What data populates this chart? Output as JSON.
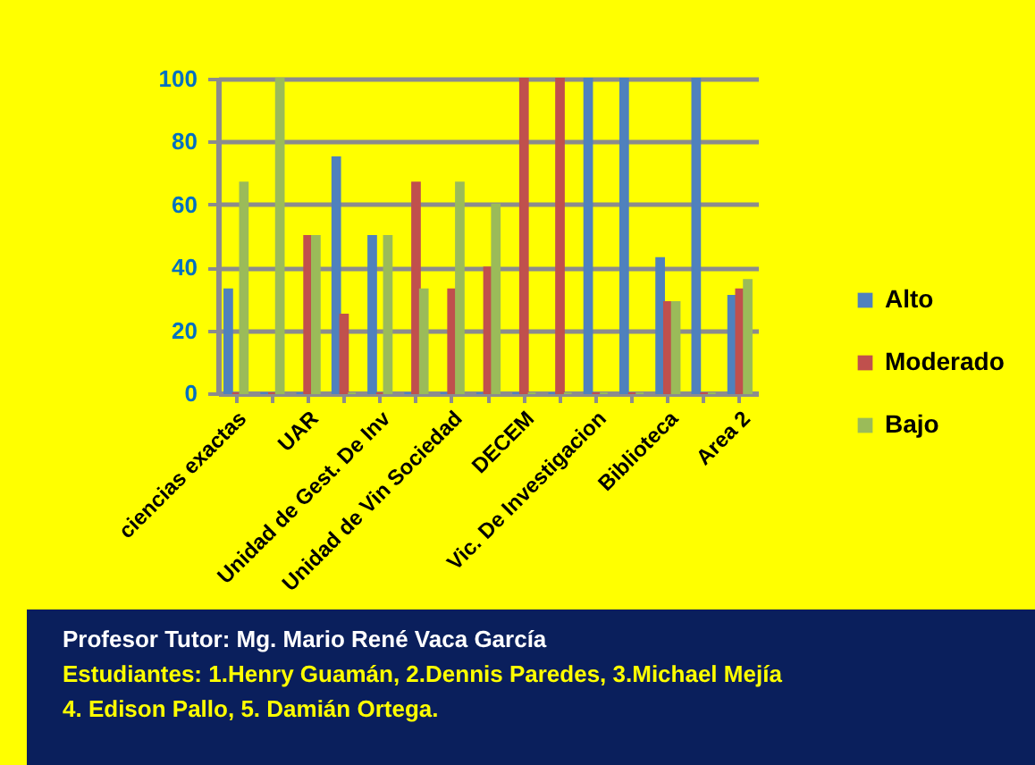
{
  "chart_data": {
    "type": "bar",
    "categories": [
      "ciencias exactas",
      null,
      "UAR",
      null,
      "Unidad de Gest. De Inv",
      null,
      "Unidad de Vin Sociedad",
      null,
      "DECEM",
      null,
      "Vic. De Investigacion",
      null,
      "Biblioteca",
      null,
      "Area 2"
    ],
    "series": [
      {
        "name": "Alto",
        "color": "#4f81bd",
        "values": [
          33,
          0,
          0,
          75,
          50,
          0,
          0,
          0,
          0,
          0,
          100,
          100,
          43,
          100,
          31
        ]
      },
      {
        "name": "Moderado",
        "color": "#c0504d",
        "values": [
          0,
          0,
          50,
          25,
          0,
          67,
          33,
          40,
          100,
          100,
          0,
          0,
          29,
          0,
          33
        ]
      },
      {
        "name": "Bajo",
        "color": "#9bbb59",
        "values": [
          67,
          100,
          50,
          0,
          50,
          33,
          67,
          60,
          0,
          0,
          0,
          0,
          29,
          0,
          36
        ]
      }
    ],
    "ylim": [
      0,
      100
    ],
    "yticks": [
      0,
      20,
      40,
      60,
      80,
      100
    ],
    "grid": "y",
    "legend": "right",
    "annotations": [
      "Profesor Tutor:  Mg. Mario René Vaca García",
      "Estudiantes: 1.Henry Guamán, 2.Dennis Paredes, 3.Michael Mejía",
      "4. Edison Pallo, 5. Damián Ortega."
    ]
  }
}
